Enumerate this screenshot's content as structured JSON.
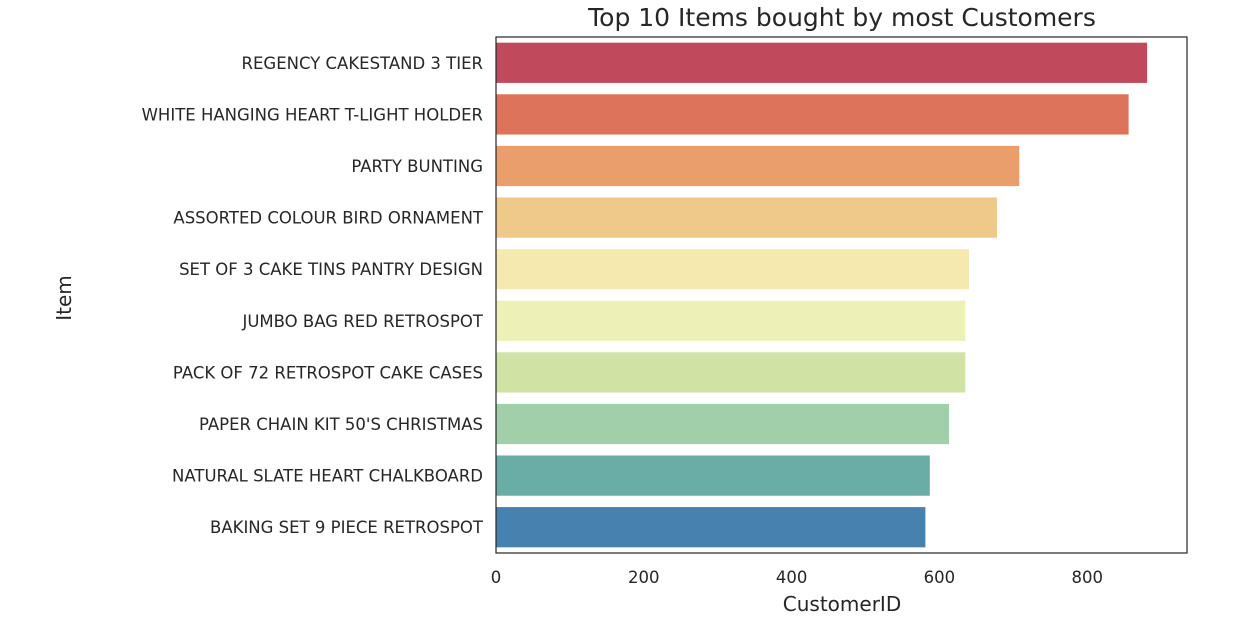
{
  "chart_data": {
    "type": "bar",
    "orientation": "horizontal",
    "title": "Top 10 Items bought by most Customers",
    "xlabel": "CustomerID",
    "ylabel": "Item",
    "xlim": [
      0,
      935
    ],
    "xticks": [
      0,
      200,
      400,
      600,
      800
    ],
    "grid": false,
    "categories": [
      "REGENCY CAKESTAND 3 TIER",
      "WHITE HANGING HEART T-LIGHT HOLDER",
      "PARTY BUNTING",
      "ASSORTED COLOUR BIRD ORNAMENT",
      "SET OF 3 CAKE TINS PANTRY DESIGN ",
      "JUMBO BAG RED RETROSPOT",
      "PACK OF 72 RETROSPOT CAKE CASES",
      "PAPER CHAIN KIT 50'S CHRISTMAS ",
      "NATURAL SLATE HEART CHALKBOARD ",
      "BAKING SET 9 PIECE RETROSPOT "
    ],
    "values": [
      881,
      856,
      708,
      678,
      640,
      635,
      635,
      613,
      587,
      581
    ],
    "colors": [
      "#c0495b",
      "#dd735b",
      "#e99e6b",
      "#eec98a",
      "#f5e9b0",
      "#edf0b7",
      "#d0e3a4",
      "#a0cfaa",
      "#69ada6",
      "#4681b0"
    ]
  }
}
